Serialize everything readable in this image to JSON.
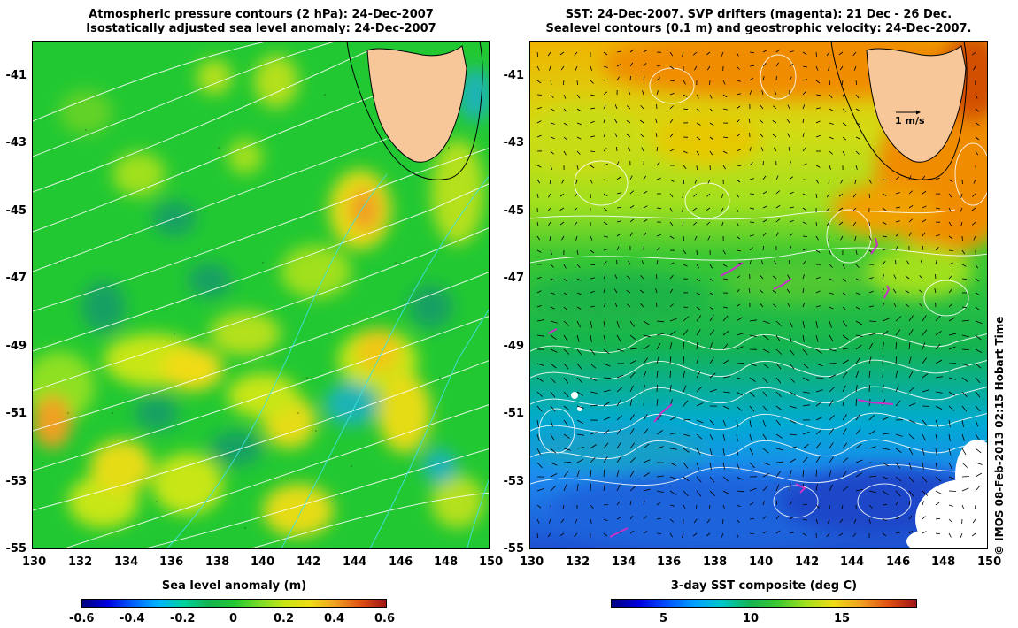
{
  "left_panel": {
    "title_line1": "Atmospheric pressure contours (2 hPa): 24-Dec-2007",
    "title_line2": "Isostatically adjusted sea level anomaly: 24-Dec-2007",
    "x_ticks": [
      "130",
      "132",
      "134",
      "136",
      "138",
      "140",
      "142",
      "144",
      "146",
      "148",
      "150"
    ],
    "y_ticks": [
      "-41",
      "-43",
      "-45",
      "-47",
      "-49",
      "-51",
      "-53",
      "-55"
    ],
    "colorbar_label": "Sea level anomaly (m)",
    "colorbar_ticks": [
      "-0.6",
      "-0.4",
      "-0.2",
      "0",
      "0.2",
      "0.4",
      "0.6"
    ]
  },
  "right_panel": {
    "title_line1": "SST: 24-Dec-2007. SVP drifters (magenta): 21 Dec - 26 Dec.",
    "title_line2": "Sealevel contours (0.1 m) and geostrophic velocity: 24-Dec-2007.",
    "x_ticks": [
      "130",
      "132",
      "134",
      "136",
      "138",
      "140",
      "142",
      "144",
      "146",
      "148",
      "150"
    ],
    "y_ticks": [
      "-41",
      "-43",
      "-45",
      "-47",
      "-49",
      "-51",
      "-53",
      "-55"
    ],
    "velocity_scale_label": "1 m/s",
    "colorbar_label": "3-day SST composite (deg C)",
    "colorbar_ticks": [
      "5",
      "10",
      "15"
    ]
  },
  "credit": "© IMOS 08-Feb-2013 02:15 Hobart Time",
  "colors": {
    "land": "#f7c79a",
    "sla_base": "#22c832",
    "sst_warm": "#f08c00",
    "sst_cold": "#1e6ee6",
    "drifter": "#c832c8"
  }
}
